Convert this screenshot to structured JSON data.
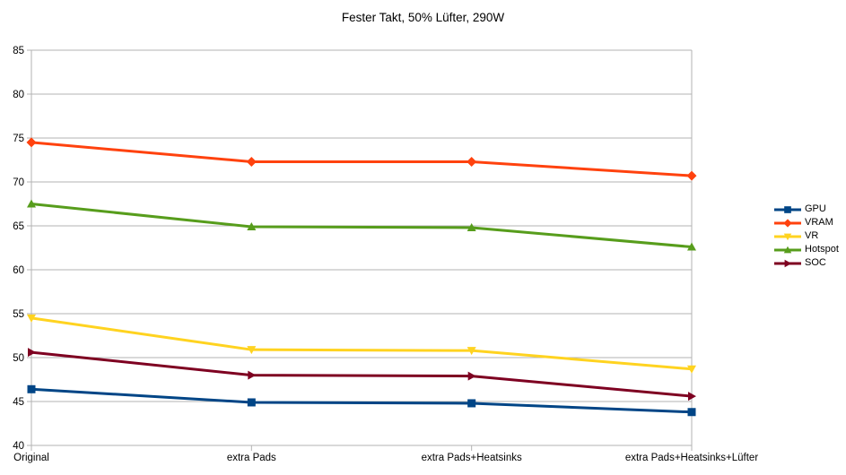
{
  "chart_data": {
    "type": "line",
    "title": "Fester Takt, 50% Lüfter, 290W",
    "categories": [
      "Original",
      "extra Pads",
      "extra Pads+Heatsinks",
      "extra Pads+Heatsinks+Lüfter"
    ],
    "series": [
      {
        "name": "GPU",
        "color": "#004586",
        "marker": "square",
        "values": [
          46.4,
          44.9,
          44.8,
          43.8
        ]
      },
      {
        "name": "VRAM",
        "color": "#FF420E",
        "marker": "diamond",
        "values": [
          74.5,
          72.3,
          72.3,
          70.7
        ]
      },
      {
        "name": "VR",
        "color": "#FFD320",
        "marker": "triangle-down",
        "values": [
          54.5,
          50.9,
          50.8,
          48.7
        ]
      },
      {
        "name": "Hotspot",
        "color": "#579D1C",
        "marker": "triangle-up",
        "values": [
          67.5,
          64.9,
          64.8,
          62.6
        ]
      },
      {
        "name": "SOC",
        "color": "#7E0021",
        "marker": "triangle-right",
        "values": [
          50.6,
          48.0,
          47.9,
          45.6
        ]
      }
    ],
    "ylim": [
      40,
      85
    ],
    "ytick_step": 5,
    "ytick_labels": [
      "40",
      "45",
      "50",
      "55",
      "60",
      "65",
      "70",
      "75",
      "80",
      "85"
    ],
    "grid": true,
    "legend_position": "right",
    "grid_color": "#b3b3b3",
    "text_color": "#000000",
    "background_color": "#ffffff"
  }
}
